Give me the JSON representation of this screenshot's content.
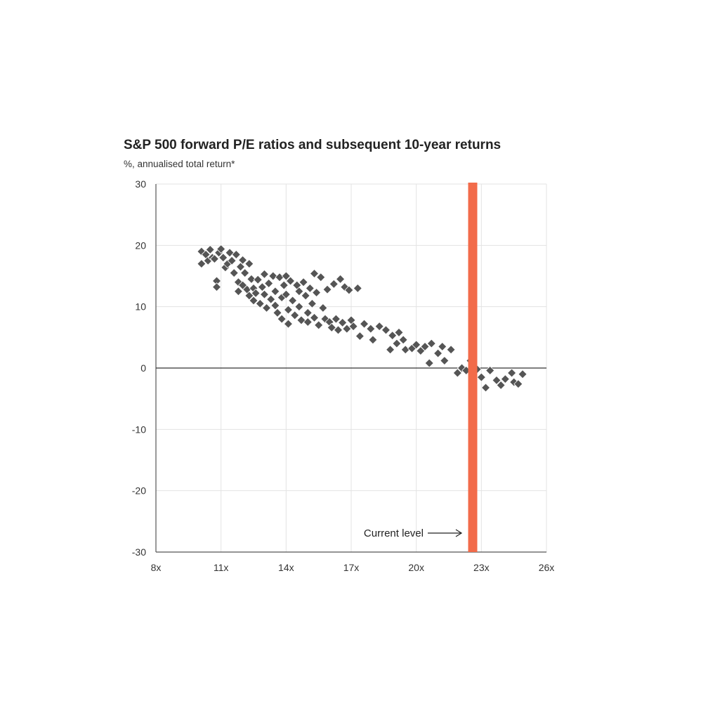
{
  "chart_data": {
    "type": "scatter",
    "title": "S&P 500 forward P/E ratios and subsequent 10-year returns",
    "subtitle": "%, annualised total return*",
    "xlabel": "",
    "ylabel": "",
    "xlim": [
      8,
      26
    ],
    "ylim": [
      -30,
      30
    ],
    "x_ticks": [
      8,
      11,
      14,
      17,
      20,
      23,
      26
    ],
    "x_tick_labels": [
      "8x",
      "11x",
      "14x",
      "17x",
      "20x",
      "23x",
      "26x"
    ],
    "y_ticks": [
      30,
      20,
      10,
      0,
      -10,
      -20,
      -30
    ],
    "y_tick_labels": [
      "30",
      "20",
      "10",
      "0",
      "-10",
      "-20",
      "-30"
    ],
    "grid": true,
    "zero_line": 0,
    "current_level": {
      "x": 22.6,
      "label": "Current level",
      "color": "#f26b4a"
    },
    "marker_color": "#555555",
    "points": [
      [
        10.1,
        19
      ],
      [
        10.1,
        17
      ],
      [
        10.3,
        18.5
      ],
      [
        10.4,
        17.5
      ],
      [
        10.5,
        19.3
      ],
      [
        10.6,
        18
      ],
      [
        10.7,
        17.8
      ],
      [
        10.8,
        14.2
      ],
      [
        10.8,
        13.2
      ],
      [
        10.9,
        18.8
      ],
      [
        11.0,
        19.4
      ],
      [
        11.1,
        18
      ],
      [
        11.2,
        16.4
      ],
      [
        11.3,
        17
      ],
      [
        11.4,
        18.8
      ],
      [
        11.5,
        17.5
      ],
      [
        11.6,
        15.5
      ],
      [
        11.7,
        18.5
      ],
      [
        11.8,
        14
      ],
      [
        11.8,
        12.5
      ],
      [
        11.9,
        16.5
      ],
      [
        12.0,
        17.6
      ],
      [
        12.0,
        13.5
      ],
      [
        12.1,
        15.5
      ],
      [
        12.2,
        12.8
      ],
      [
        12.3,
        17
      ],
      [
        12.3,
        11.8
      ],
      [
        12.4,
        14.5
      ],
      [
        12.5,
        13
      ],
      [
        12.5,
        11
      ],
      [
        12.6,
        12.2
      ],
      [
        12.7,
        14.4
      ],
      [
        12.8,
        10.5
      ],
      [
        12.9,
        13.2
      ],
      [
        13.0,
        15.3
      ],
      [
        13.0,
        12
      ],
      [
        13.1,
        9.8
      ],
      [
        13.2,
        13.8
      ],
      [
        13.3,
        11.2
      ],
      [
        13.4,
        15
      ],
      [
        13.5,
        12.5
      ],
      [
        13.5,
        10.2
      ],
      [
        13.6,
        9
      ],
      [
        13.7,
        14.8
      ],
      [
        13.8,
        11.5
      ],
      [
        13.8,
        8
      ],
      [
        13.9,
        13.5
      ],
      [
        14.0,
        15
      ],
      [
        14.0,
        12
      ],
      [
        14.1,
        9.5
      ],
      [
        14.1,
        7.2
      ],
      [
        14.2,
        14.2
      ],
      [
        14.3,
        11
      ],
      [
        14.4,
        8.6
      ],
      [
        14.5,
        13.5
      ],
      [
        14.6,
        12.5
      ],
      [
        14.6,
        10
      ],
      [
        14.7,
        7.8
      ],
      [
        14.8,
        14
      ],
      [
        14.9,
        11.8
      ],
      [
        15.0,
        9
      ],
      [
        15.0,
        7.5
      ],
      [
        15.1,
        13
      ],
      [
        15.2,
        10.5
      ],
      [
        15.3,
        15.4
      ],
      [
        15.3,
        8.2
      ],
      [
        15.4,
        12.3
      ],
      [
        15.5,
        7
      ],
      [
        15.6,
        14.8
      ],
      [
        15.7,
        9.8
      ],
      [
        15.8,
        8
      ],
      [
        15.9,
        12.8
      ],
      [
        16.0,
        7.5
      ],
      [
        16.1,
        6.6
      ],
      [
        16.2,
        13.7
      ],
      [
        16.3,
        8
      ],
      [
        16.4,
        6.2
      ],
      [
        16.5,
        14.5
      ],
      [
        16.6,
        7.4
      ],
      [
        16.7,
        13.2
      ],
      [
        16.8,
        6.4
      ],
      [
        16.9,
        12.7
      ],
      [
        17.0,
        7.8
      ],
      [
        17.1,
        6.8
      ],
      [
        17.3,
        13
      ],
      [
        17.4,
        5.2
      ],
      [
        17.6,
        7.2
      ],
      [
        17.9,
        6.4
      ],
      [
        18.0,
        4.6
      ],
      [
        18.3,
        6.8
      ],
      [
        18.6,
        6.2
      ],
      [
        18.8,
        3
      ],
      [
        18.9,
        5.3
      ],
      [
        19.1,
        4
      ],
      [
        19.2,
        5.8
      ],
      [
        19.4,
        4.6
      ],
      [
        19.5,
        3
      ],
      [
        19.8,
        3.2
      ],
      [
        20.0,
        3.8
      ],
      [
        20.2,
        2.8
      ],
      [
        20.4,
        3.5
      ],
      [
        20.6,
        0.8
      ],
      [
        20.7,
        4
      ],
      [
        21.0,
        2.4
      ],
      [
        21.2,
        3.5
      ],
      [
        21.3,
        1.2
      ],
      [
        21.6,
        3
      ],
      [
        21.9,
        -0.8
      ],
      [
        22.1,
        0
      ],
      [
        22.3,
        -0.4
      ],
      [
        22.5,
        1.2
      ],
      [
        22.6,
        -0.8
      ],
      [
        22.8,
        -0.2
      ],
      [
        23.0,
        -1.5
      ],
      [
        23.2,
        -3.2
      ],
      [
        23.4,
        -0.4
      ],
      [
        23.7,
        -2
      ],
      [
        23.9,
        -2.8
      ],
      [
        24.1,
        -1.8
      ],
      [
        24.4,
        -0.8
      ],
      [
        24.5,
        -2.3
      ],
      [
        24.7,
        -2.6
      ],
      [
        24.9,
        -1
      ]
    ]
  }
}
